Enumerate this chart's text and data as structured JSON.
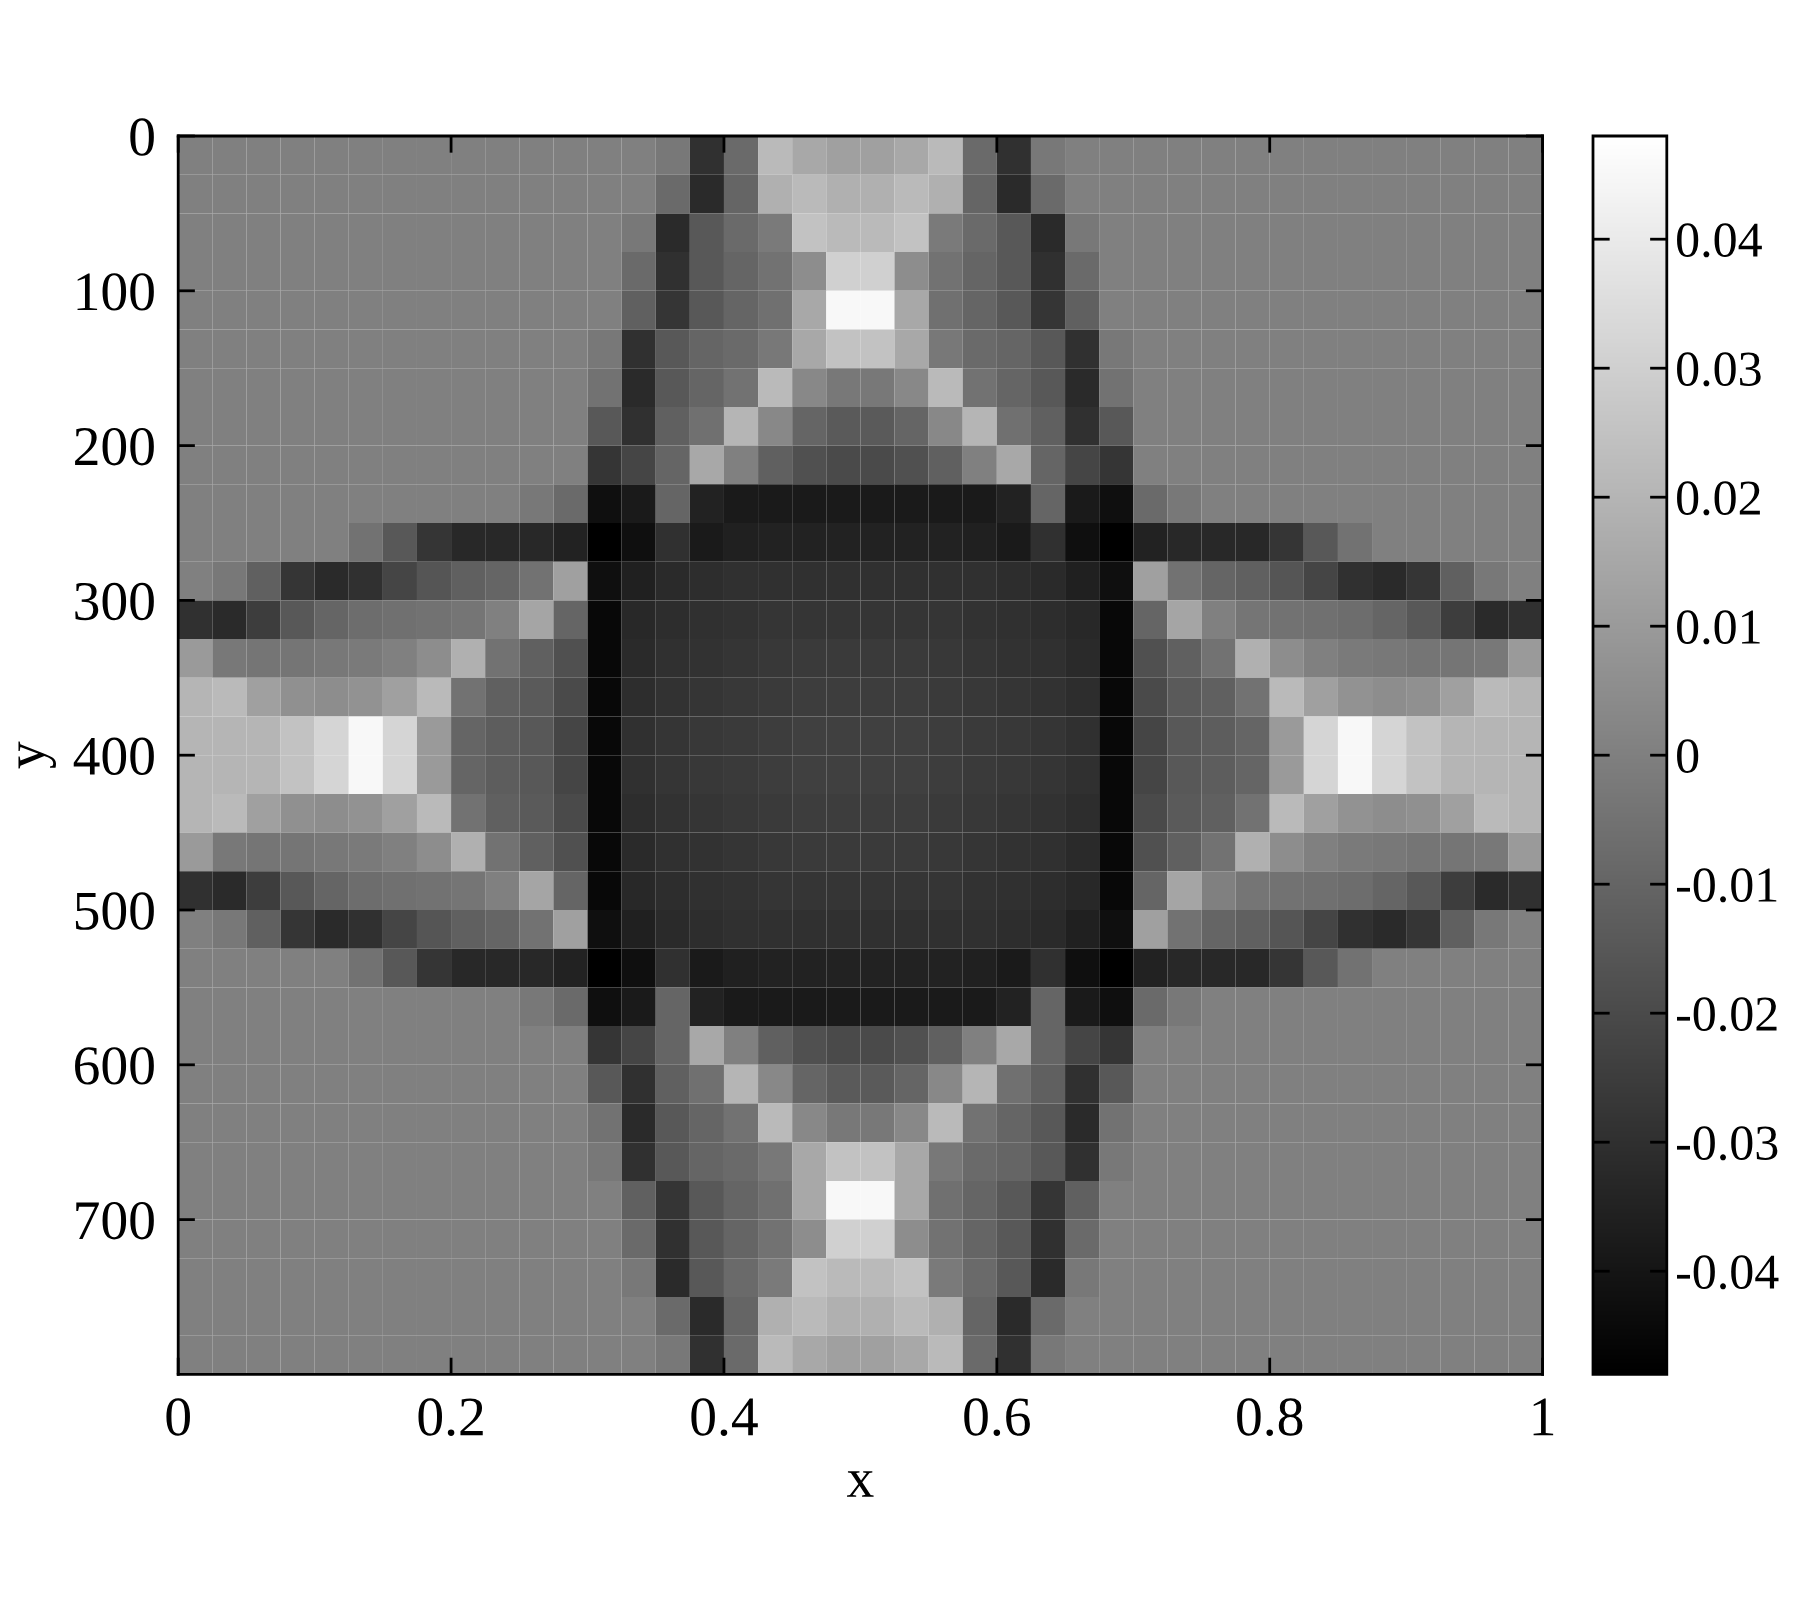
{
  "chart_data": {
    "type": "heatmap",
    "xlabel": "x",
    "ylabel": "y",
    "x": [
      0.0125,
      0.0375,
      0.0625,
      0.0875,
      0.1125,
      0.1375,
      0.1625,
      0.1875,
      0.2125,
      0.2375,
      0.2625,
      0.2875,
      0.3125,
      0.3375,
      0.3625,
      0.3875,
      0.4125,
      0.4375,
      0.4625,
      0.4875,
      0.5125,
      0.5375,
      0.5625,
      0.5875,
      0.6125,
      0.6375,
      0.6625,
      0.6875,
      0.7125,
      0.7375,
      0.7625,
      0.7875,
      0.8125,
      0.8375,
      0.8625,
      0.8875,
      0.9125,
      0.9375,
      0.9625,
      0.9875
    ],
    "xlim": [
      0,
      1
    ],
    "xticks": [
      0,
      0.2,
      0.4,
      0.6,
      0.8,
      1
    ],
    "ylim": [
      800,
      0
    ],
    "yticks": [
      0,
      100,
      200,
      300,
      400,
      500,
      600,
      700
    ],
    "clim": [
      -0.048,
      0.048
    ],
    "cticks": [
      -0.04,
      -0.03,
      -0.02,
      -0.01,
      0,
      0.01,
      0.02,
      0.03,
      0.04
    ],
    "cells": [
      [
        0,
        0,
        0,
        0,
        0,
        0,
        0,
        0,
        0,
        0,
        0,
        0,
        0,
        0,
        -0.003,
        -0.03,
        -0.008,
        0.022,
        0.015,
        0.012,
        0.012,
        0.015,
        0.022,
        -0.008,
        -0.03,
        -0.003,
        0,
        0,
        0,
        0,
        0,
        0,
        0,
        0,
        0,
        0,
        0,
        0,
        0,
        0
      ],
      [
        0,
        0,
        0,
        0,
        0,
        0,
        0,
        0,
        0,
        0,
        0,
        0,
        0,
        0,
        -0.008,
        -0.032,
        -0.01,
        0.018,
        0.022,
        0.018,
        0.018,
        0.022,
        0.018,
        -0.01,
        -0.032,
        -0.008,
        0,
        0,
        0,
        0,
        0,
        0,
        0,
        0,
        0,
        0,
        0,
        0,
        0,
        0
      ],
      [
        0,
        0,
        0,
        0,
        0,
        0,
        0,
        0,
        0,
        0,
        0,
        0,
        0,
        -0.003,
        -0.032,
        -0.015,
        -0.008,
        -0.002,
        0.025,
        0.022,
        0.022,
        0.025,
        -0.002,
        -0.008,
        -0.015,
        -0.032,
        -0.003,
        0,
        0,
        0,
        0,
        0,
        0,
        0,
        0,
        0,
        0,
        0,
        0,
        0
      ],
      [
        0,
        0,
        0,
        0,
        0,
        0,
        0,
        0,
        0,
        0,
        0,
        0,
        0,
        -0.008,
        -0.03,
        -0.015,
        -0.01,
        -0.005,
        0.005,
        0.03,
        0.03,
        0.005,
        -0.005,
        -0.01,
        -0.015,
        -0.03,
        -0.008,
        0,
        0,
        0,
        0,
        0,
        0,
        0,
        0,
        0,
        0,
        0,
        0,
        0
      ],
      [
        0,
        0,
        0,
        0,
        0,
        0,
        0,
        0,
        0,
        0,
        0,
        0,
        0,
        -0.012,
        -0.028,
        -0.015,
        -0.01,
        -0.006,
        0.015,
        0.045,
        0.045,
        0.015,
        -0.006,
        -0.01,
        -0.015,
        -0.028,
        -0.012,
        0,
        0,
        0,
        0,
        0,
        0,
        0,
        0,
        0,
        0,
        0,
        0,
        0
      ],
      [
        0,
        0,
        0,
        0,
        0,
        0,
        0,
        0,
        0,
        0,
        0,
        0,
        -0.003,
        -0.03,
        -0.015,
        -0.01,
        -0.008,
        -0.003,
        0.015,
        0.025,
        0.025,
        0.015,
        -0.003,
        -0.008,
        -0.01,
        -0.015,
        -0.03,
        -0.003,
        0,
        0,
        0,
        0,
        0,
        0,
        0,
        0,
        0,
        0,
        0,
        0
      ],
      [
        0,
        0,
        0,
        0,
        0,
        0,
        0,
        0,
        0,
        0,
        0,
        0,
        -0.005,
        -0.032,
        -0.015,
        -0.01,
        -0.005,
        0.022,
        0.003,
        -0.003,
        -0.003,
        0.003,
        0.022,
        -0.005,
        -0.01,
        -0.015,
        -0.032,
        -0.005,
        0,
        0,
        0,
        0,
        0,
        0,
        0,
        0,
        0,
        0,
        0,
        0
      ],
      [
        0,
        0,
        0,
        0,
        0,
        0,
        0,
        0,
        0,
        0,
        0,
        0,
        -0.015,
        -0.03,
        -0.012,
        -0.006,
        0.02,
        0.003,
        -0.01,
        -0.014,
        -0.014,
        -0.01,
        0.003,
        0.02,
        -0.006,
        -0.012,
        -0.03,
        -0.015,
        0,
        0,
        0,
        0,
        0,
        0,
        0,
        0,
        0,
        0,
        0,
        0
      ],
      [
        0,
        0,
        0,
        0,
        0,
        0,
        0,
        0,
        0,
        0,
        0,
        0,
        -0.028,
        -0.022,
        -0.01,
        0.015,
        0,
        -0.012,
        -0.018,
        -0.02,
        -0.02,
        -0.018,
        -0.012,
        0,
        0.015,
        -0.01,
        -0.022,
        -0.028,
        0,
        0,
        0,
        0,
        0,
        0,
        0,
        0,
        0,
        0,
        0,
        0
      ],
      [
        0,
        0,
        0,
        0,
        0,
        0,
        0,
        0,
        0,
        0,
        -0.003,
        -0.008,
        -0.042,
        -0.038,
        -0.01,
        -0.035,
        -0.038,
        -0.038,
        -0.038,
        -0.038,
        -0.038,
        -0.038,
        -0.038,
        -0.038,
        -0.035,
        -0.01,
        -0.038,
        -0.042,
        -0.008,
        -0.003,
        0,
        0,
        0,
        0,
        0,
        0,
        0,
        0,
        0,
        0
      ],
      [
        0,
        0,
        0,
        0,
        0,
        -0.005,
        -0.015,
        -0.028,
        -0.033,
        -0.033,
        -0.033,
        -0.035,
        -0.048,
        -0.042,
        -0.03,
        -0.038,
        -0.036,
        -0.035,
        -0.035,
        -0.035,
        -0.035,
        -0.035,
        -0.035,
        -0.036,
        -0.038,
        -0.03,
        -0.042,
        -0.048,
        -0.035,
        -0.033,
        -0.033,
        -0.033,
        -0.028,
        -0.015,
        -0.005,
        0,
        0,
        0,
        0,
        0
      ],
      [
        0,
        -0.003,
        -0.012,
        -0.028,
        -0.032,
        -0.03,
        -0.022,
        -0.016,
        -0.012,
        -0.01,
        -0.005,
        0.012,
        -0.042,
        -0.036,
        -0.032,
        -0.031,
        -0.03,
        -0.03,
        -0.03,
        -0.03,
        -0.03,
        -0.03,
        -0.03,
        -0.03,
        -0.031,
        -0.032,
        -0.036,
        -0.042,
        0.012,
        -0.005,
        -0.01,
        -0.012,
        -0.016,
        -0.022,
        -0.03,
        -0.032,
        -0.028,
        -0.012,
        -0.003,
        0
      ],
      [
        -0.03,
        -0.032,
        -0.025,
        -0.015,
        -0.01,
        -0.007,
        -0.006,
        -0.005,
        -0.004,
        0,
        0.014,
        -0.01,
        -0.045,
        -0.033,
        -0.031,
        -0.03,
        -0.029,
        -0.028,
        -0.028,
        -0.028,
        -0.028,
        -0.028,
        -0.028,
        -0.029,
        -0.03,
        -0.031,
        -0.033,
        -0.045,
        -0.01,
        0.014,
        0,
        -0.004,
        -0.005,
        -0.006,
        -0.007,
        -0.01,
        -0.015,
        -0.025,
        -0.032,
        -0.03
      ],
      [
        0.01,
        -0.003,
        -0.004,
        -0.004,
        -0.003,
        -0.002,
        0,
        0.005,
        0.018,
        -0.005,
        -0.012,
        -0.018,
        -0.045,
        -0.032,
        -0.03,
        -0.029,
        -0.028,
        -0.027,
        -0.026,
        -0.026,
        -0.026,
        -0.026,
        -0.027,
        -0.028,
        -0.029,
        -0.03,
        -0.032,
        -0.045,
        -0.018,
        -0.012,
        -0.005,
        0.018,
        0.005,
        0,
        -0.002,
        -0.003,
        -0.004,
        -0.004,
        -0.003,
        0.01
      ],
      [
        0.02,
        0.022,
        0.012,
        0.006,
        0.005,
        0.007,
        0.012,
        0.022,
        -0.005,
        -0.012,
        -0.014,
        -0.02,
        -0.045,
        -0.031,
        -0.029,
        -0.028,
        -0.027,
        -0.026,
        -0.025,
        -0.025,
        -0.025,
        -0.025,
        -0.026,
        -0.027,
        -0.028,
        -0.029,
        -0.031,
        -0.045,
        -0.02,
        -0.014,
        -0.012,
        -0.005,
        0.022,
        0.012,
        0.007,
        0.005,
        0.006,
        0.012,
        0.022,
        0.02
      ],
      [
        0.02,
        0.02,
        0.02,
        0.025,
        0.032,
        0.045,
        0.032,
        0.01,
        -0.01,
        -0.013,
        -0.015,
        -0.022,
        -0.045,
        -0.03,
        -0.028,
        -0.027,
        -0.026,
        -0.025,
        -0.024,
        -0.024,
        -0.024,
        -0.024,
        -0.025,
        -0.026,
        -0.027,
        -0.028,
        -0.03,
        -0.045,
        -0.022,
        -0.015,
        -0.013,
        -0.01,
        0.01,
        0.032,
        0.045,
        0.032,
        0.025,
        0.02,
        0.02,
        0.02
      ],
      [
        0.02,
        0.02,
        0.02,
        0.025,
        0.032,
        0.045,
        0.032,
        0.01,
        -0.01,
        -0.013,
        -0.015,
        -0.022,
        -0.045,
        -0.03,
        -0.028,
        -0.027,
        -0.026,
        -0.025,
        -0.024,
        -0.024,
        -0.024,
        -0.024,
        -0.025,
        -0.026,
        -0.027,
        -0.028,
        -0.03,
        -0.045,
        -0.022,
        -0.015,
        -0.013,
        -0.01,
        0.01,
        0.032,
        0.045,
        0.032,
        0.025,
        0.02,
        0.02,
        0.02
      ],
      [
        0.02,
        0.022,
        0.012,
        0.006,
        0.005,
        0.007,
        0.012,
        0.022,
        -0.005,
        -0.012,
        -0.014,
        -0.02,
        -0.045,
        -0.031,
        -0.029,
        -0.028,
        -0.027,
        -0.026,
        -0.025,
        -0.025,
        -0.025,
        -0.025,
        -0.026,
        -0.027,
        -0.028,
        -0.029,
        -0.031,
        -0.045,
        -0.02,
        -0.014,
        -0.012,
        -0.005,
        0.022,
        0.012,
        0.007,
        0.005,
        0.006,
        0.012,
        0.022,
        0.02
      ],
      [
        0.01,
        -0.003,
        -0.004,
        -0.004,
        -0.003,
        -0.002,
        0,
        0.005,
        0.018,
        -0.005,
        -0.012,
        -0.018,
        -0.045,
        -0.032,
        -0.03,
        -0.029,
        -0.028,
        -0.027,
        -0.026,
        -0.026,
        -0.026,
        -0.026,
        -0.027,
        -0.028,
        -0.029,
        -0.03,
        -0.032,
        -0.045,
        -0.018,
        -0.012,
        -0.005,
        0.018,
        0.005,
        0,
        -0.002,
        -0.003,
        -0.004,
        -0.004,
        -0.003,
        0.01
      ],
      [
        -0.03,
        -0.032,
        -0.025,
        -0.015,
        -0.01,
        -0.007,
        -0.006,
        -0.005,
        -0.004,
        0,
        0.014,
        -0.01,
        -0.045,
        -0.033,
        -0.031,
        -0.03,
        -0.029,
        -0.028,
        -0.028,
        -0.028,
        -0.028,
        -0.028,
        -0.028,
        -0.029,
        -0.03,
        -0.031,
        -0.033,
        -0.045,
        -0.01,
        0.014,
        0,
        -0.004,
        -0.005,
        -0.006,
        -0.007,
        -0.01,
        -0.015,
        -0.025,
        -0.032,
        -0.03
      ],
      [
        0,
        -0.003,
        -0.012,
        -0.028,
        -0.032,
        -0.03,
        -0.022,
        -0.016,
        -0.012,
        -0.01,
        -0.005,
        0.012,
        -0.042,
        -0.036,
        -0.032,
        -0.031,
        -0.03,
        -0.03,
        -0.03,
        -0.03,
        -0.03,
        -0.03,
        -0.03,
        -0.03,
        -0.031,
        -0.032,
        -0.036,
        -0.042,
        0.012,
        -0.005,
        -0.01,
        -0.012,
        -0.016,
        -0.022,
        -0.03,
        -0.032,
        -0.028,
        -0.012,
        -0.003,
        0
      ],
      [
        0,
        0,
        0,
        0,
        0,
        -0.005,
        -0.015,
        -0.028,
        -0.033,
        -0.033,
        -0.033,
        -0.035,
        -0.048,
        -0.042,
        -0.03,
        -0.038,
        -0.036,
        -0.035,
        -0.035,
        -0.035,
        -0.035,
        -0.035,
        -0.035,
        -0.036,
        -0.038,
        -0.03,
        -0.042,
        -0.048,
        -0.035,
        -0.033,
        -0.033,
        -0.033,
        -0.028,
        -0.015,
        -0.005,
        0,
        0,
        0,
        0,
        0
      ],
      [
        0,
        0,
        0,
        0,
        0,
        0,
        0,
        0,
        0,
        0,
        -0.003,
        -0.008,
        -0.042,
        -0.038,
        -0.01,
        -0.035,
        -0.038,
        -0.038,
        -0.038,
        -0.038,
        -0.038,
        -0.038,
        -0.038,
        -0.038,
        -0.035,
        -0.01,
        -0.038,
        -0.042,
        -0.008,
        -0.003,
        0,
        0,
        0,
        0,
        0,
        0,
        0,
        0,
        0,
        0
      ],
      [
        0,
        0,
        0,
        0,
        0,
        0,
        0,
        0,
        0,
        0,
        0,
        0,
        -0.028,
        -0.022,
        -0.01,
        0.015,
        0,
        -0.012,
        -0.018,
        -0.02,
        -0.02,
        -0.018,
        -0.012,
        0,
        0.015,
        -0.01,
        -0.022,
        -0.028,
        0,
        0,
        0,
        0,
        0,
        0,
        0,
        0,
        0,
        0,
        0,
        0
      ],
      [
        0,
        0,
        0,
        0,
        0,
        0,
        0,
        0,
        0,
        0,
        0,
        0,
        -0.015,
        -0.03,
        -0.012,
        -0.006,
        0.02,
        0.003,
        -0.01,
        -0.014,
        -0.014,
        -0.01,
        0.003,
        0.02,
        -0.006,
        -0.012,
        -0.03,
        -0.015,
        0,
        0,
        0,
        0,
        0,
        0,
        0,
        0,
        0,
        0,
        0,
        0
      ],
      [
        0,
        0,
        0,
        0,
        0,
        0,
        0,
        0,
        0,
        0,
        0,
        0,
        -0.005,
        -0.032,
        -0.015,
        -0.01,
        -0.005,
        0.022,
        0.003,
        -0.003,
        -0.003,
        0.003,
        0.022,
        -0.005,
        -0.01,
        -0.015,
        -0.032,
        -0.005,
        0,
        0,
        0,
        0,
        0,
        0,
        0,
        0,
        0,
        0,
        0,
        0
      ],
      [
        0,
        0,
        0,
        0,
        0,
        0,
        0,
        0,
        0,
        0,
        0,
        0,
        -0.003,
        -0.03,
        -0.015,
        -0.01,
        -0.008,
        -0.003,
        0.015,
        0.025,
        0.025,
        0.015,
        -0.003,
        -0.008,
        -0.01,
        -0.015,
        -0.03,
        -0.003,
        0,
        0,
        0,
        0,
        0,
        0,
        0,
        0,
        0,
        0,
        0,
        0
      ],
      [
        0,
        0,
        0,
        0,
        0,
        0,
        0,
        0,
        0,
        0,
        0,
        0,
        0,
        -0.012,
        -0.028,
        -0.015,
        -0.01,
        -0.006,
        0.015,
        0.045,
        0.045,
        0.015,
        -0.006,
        -0.01,
        -0.015,
        -0.028,
        -0.012,
        0,
        0,
        0,
        0,
        0,
        0,
        0,
        0,
        0,
        0,
        0,
        0,
        0
      ],
      [
        0,
        0,
        0,
        0,
        0,
        0,
        0,
        0,
        0,
        0,
        0,
        0,
        0,
        -0.008,
        -0.03,
        -0.015,
        -0.01,
        -0.005,
        0.005,
        0.03,
        0.03,
        0.005,
        -0.005,
        -0.01,
        -0.015,
        -0.03,
        -0.008,
        0,
        0,
        0,
        0,
        0,
        0,
        0,
        0,
        0,
        0,
        0,
        0,
        0
      ],
      [
        0,
        0,
        0,
        0,
        0,
        0,
        0,
        0,
        0,
        0,
        0,
        0,
        0,
        -0.003,
        -0.032,
        -0.015,
        -0.008,
        -0.002,
        0.025,
        0.022,
        0.022,
        0.025,
        -0.002,
        -0.008,
        -0.015,
        -0.032,
        -0.003,
        0,
        0,
        0,
        0,
        0,
        0,
        0,
        0,
        0,
        0,
        0,
        0,
        0
      ],
      [
        0,
        0,
        0,
        0,
        0,
        0,
        0,
        0,
        0,
        0,
        0,
        0,
        0,
        0,
        -0.008,
        -0.032,
        -0.01,
        0.018,
        0.022,
        0.018,
        0.018,
        0.022,
        0.018,
        -0.01,
        -0.032,
        -0.008,
        0,
        0,
        0,
        0,
        0,
        0,
        0,
        0,
        0,
        0,
        0,
        0,
        0,
        0
      ],
      [
        0,
        0,
        0,
        0,
        0,
        0,
        0,
        0,
        0,
        0,
        0,
        0,
        0,
        0,
        -0.003,
        -0.03,
        -0.008,
        0.022,
        0.015,
        0.012,
        0.012,
        0.015,
        0.022,
        -0.008,
        -0.03,
        -0.003,
        0,
        0,
        0,
        0,
        0,
        0,
        0,
        0,
        0,
        0,
        0,
        0,
        0,
        0
      ]
    ]
  }
}
